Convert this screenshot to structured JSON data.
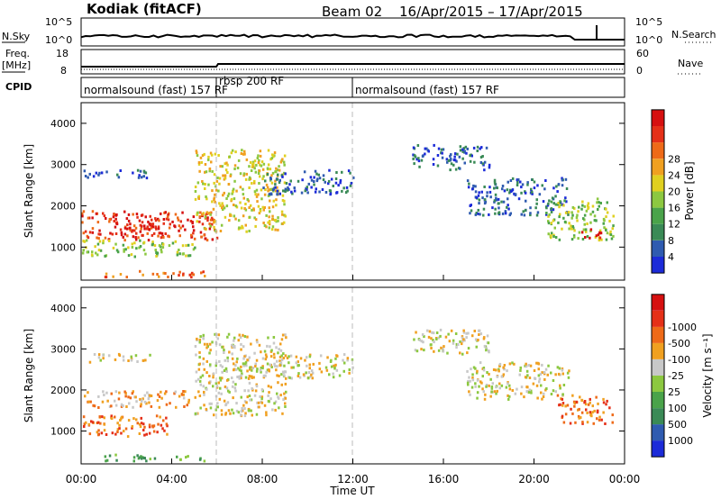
{
  "header": {
    "station": "Kodiak (fitACF)",
    "beam": "Beam 02",
    "date_range": "16/Apr/2015 – 17/Apr/2015"
  },
  "strip_panels": {
    "nsky": {
      "label": "N.Sky",
      "right_label": "N.Search",
      "tick_top": "10^5",
      "tick_bottom": "10^0"
    },
    "freq": {
      "label_top": "Freq.",
      "label_unit": "[MHz]",
      "ticks_left": [
        "18",
        "8"
      ],
      "ticks_right": [
        "60",
        "0"
      ],
      "right_label": "Nave"
    },
    "cpid": {
      "label": "CPID",
      "segments": [
        {
          "label": "normalsound (fast) 157 RF",
          "start_hour": 0,
          "end_hour": 6
        },
        {
          "label": "rbsp 200 RF",
          "start_hour": 6,
          "end_hour": 12
        },
        {
          "label": "normalsound (fast) 157 RF",
          "start_hour": 12,
          "end_hour": 24
        }
      ]
    }
  },
  "chart_data": [
    {
      "type": "heatmap",
      "title": "",
      "ylabel": "Slant Range [km]",
      "ylim": [
        200,
        4500
      ],
      "yticks": [
        1000,
        2000,
        3000,
        4000
      ],
      "xlim": [
        0,
        24
      ],
      "colorbar": {
        "label": "Power [dB]",
        "ticks": [
          "4",
          "8",
          "12",
          "16",
          "20",
          "24",
          "28"
        ],
        "colors": [
          "#1c2bd8",
          "#2f5bb0",
          "#3a8a56",
          "#4aa34a",
          "#8cc840",
          "#e0d020",
          "#f0a020",
          "#ee6a18",
          "#e53018",
          "#d61010"
        ]
      },
      "echo_bands": [
        {
          "hour_start": 0,
          "hour_end": 6,
          "range_lo": 1200,
          "range_hi": 1900,
          "level": 8
        },
        {
          "hour_start": 1.5,
          "hour_end": 3.5,
          "range_lo": 1250,
          "range_hi": 1650,
          "level": 9
        },
        {
          "hour_start": 0,
          "hour_end": 5,
          "range_lo": 800,
          "range_hi": 1200,
          "level": 4
        },
        {
          "hour_start": 1,
          "hour_end": 5.5,
          "range_lo": 300,
          "range_hi": 450,
          "level": 7
        },
        {
          "hour_start": 0,
          "hour_end": 3,
          "range_lo": 2700,
          "range_hi": 2900,
          "level": 1
        },
        {
          "hour_start": 5,
          "hour_end": 9,
          "range_lo": 1400,
          "range_hi": 3400,
          "level": 5
        },
        {
          "hour_start": 8,
          "hour_end": 12,
          "range_lo": 2300,
          "range_hi": 2900,
          "level": 1
        },
        {
          "hour_start": 14.5,
          "hour_end": 18,
          "range_lo": 2900,
          "range_hi": 3500,
          "level": 1
        },
        {
          "hour_start": 17,
          "hour_end": 21.5,
          "range_lo": 1800,
          "range_hi": 2700,
          "level": 1
        },
        {
          "hour_start": 20.5,
          "hour_end": 23.5,
          "range_lo": 1200,
          "range_hi": 2200,
          "level": 4
        },
        {
          "hour_start": 22,
          "hour_end": 23,
          "range_lo": 1250,
          "range_hi": 1500,
          "level": 9
        }
      ]
    },
    {
      "type": "heatmap",
      "title": "",
      "ylabel": "Slant Range [km]",
      "xlabel": "Time UT",
      "ylim": [
        200,
        4500
      ],
      "yticks": [
        1000,
        2000,
        3000,
        4000
      ],
      "xlim": [
        0,
        24
      ],
      "xticks": [
        "00:00",
        "04:00",
        "08:00",
        "12:00",
        "16:00",
        "20:00",
        "00:00"
      ],
      "colorbar": {
        "label": "Velocity [m s⁻¹]",
        "ticks": [
          "1000",
          "500",
          "100",
          "25",
          "-25",
          "-100",
          "-500",
          "-1000"
        ],
        "colors": [
          "#1c2bd8",
          "#2f5bb0",
          "#3a8a56",
          "#4aa34a",
          "#8cc840",
          "#c8c8c8",
          "#f0a020",
          "#ee6a18",
          "#e53018",
          "#d61010"
        ]
      },
      "echo_bands": [
        {
          "hour_start": 0,
          "hour_end": 5,
          "range_lo": 1600,
          "range_hi": 2000,
          "level": 6
        },
        {
          "hour_start": 0,
          "hour_end": 4,
          "range_lo": 900,
          "range_hi": 1400,
          "level": 7
        },
        {
          "hour_start": 1,
          "hour_end": 5.5,
          "range_lo": 300,
          "range_hi": 450,
          "level": 3
        },
        {
          "hour_start": 0,
          "hour_end": 3,
          "range_lo": 2700,
          "range_hi": 2900,
          "level": 5
        },
        {
          "hour_start": 5,
          "hour_end": 9,
          "range_lo": 1400,
          "range_hi": 3400,
          "level": 5
        },
        {
          "hour_start": 8,
          "hour_end": 12,
          "range_lo": 2300,
          "range_hi": 2900,
          "level": 5
        },
        {
          "hour_start": 14.5,
          "hour_end": 18,
          "range_lo": 2900,
          "range_hi": 3500,
          "level": 5
        },
        {
          "hour_start": 17,
          "hour_end": 21.5,
          "range_lo": 1800,
          "range_hi": 2700,
          "level": 5
        },
        {
          "hour_start": 21,
          "hour_end": 23.5,
          "range_lo": 1200,
          "range_hi": 1900,
          "level": 7
        }
      ]
    }
  ]
}
